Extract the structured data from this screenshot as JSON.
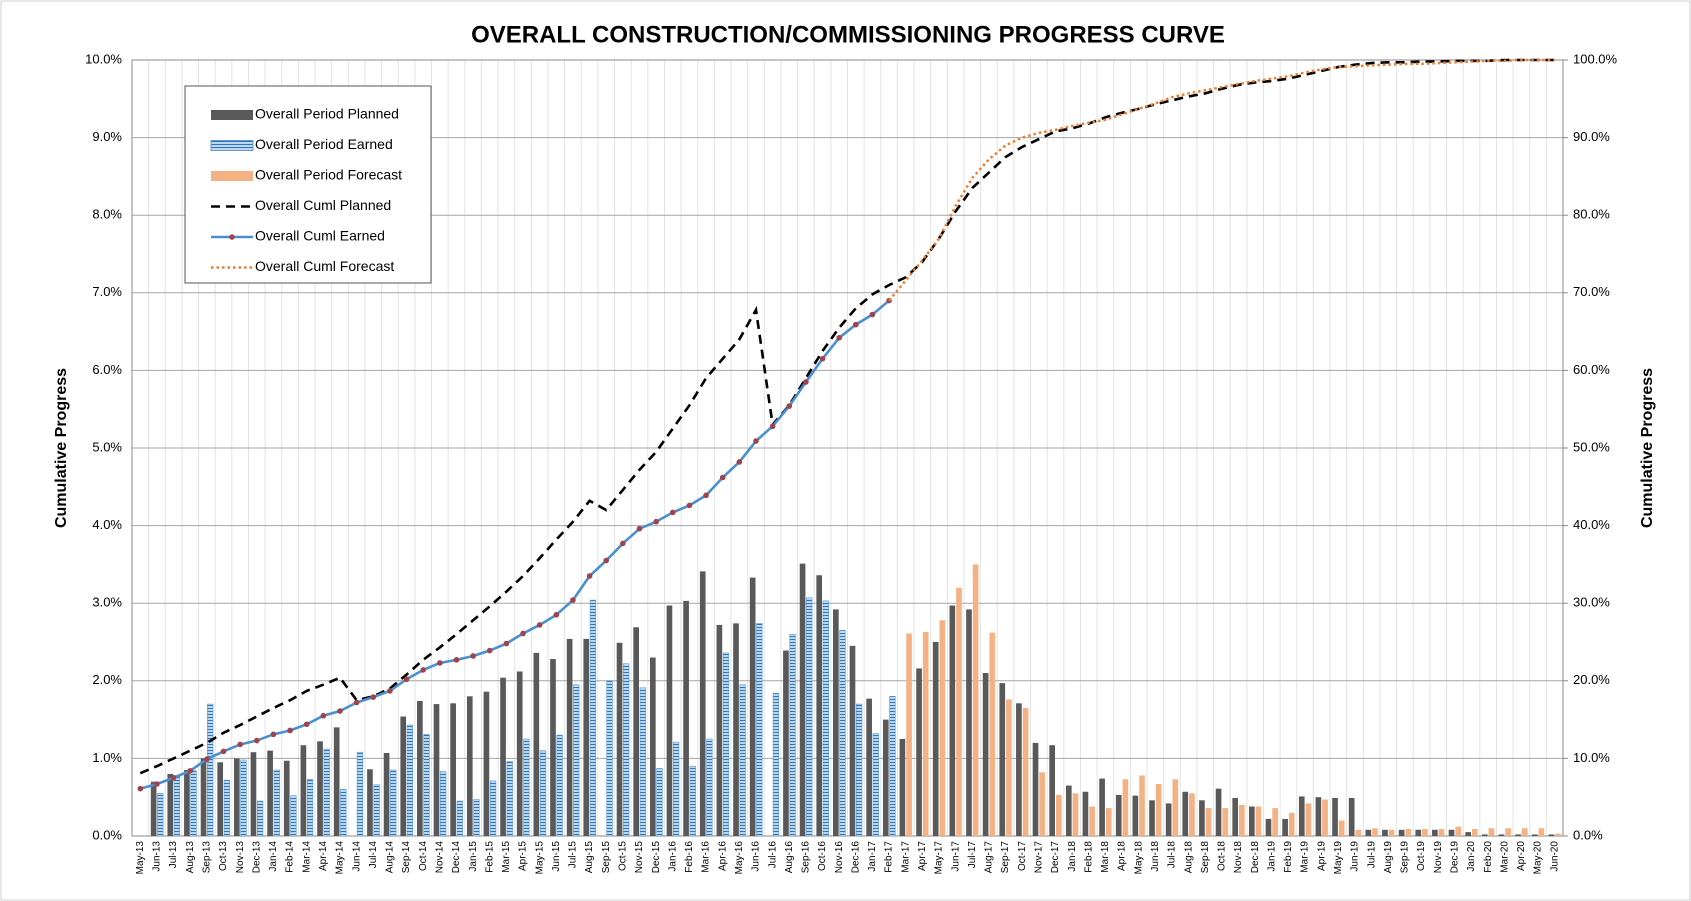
{
  "chart_data": {
    "type": "bar",
    "title": "OVERALL CONSTRUCTION/COMMISSIONING PROGRESS CURVE",
    "ylabel": "Cumulative Progress",
    "y2label": "Cumulative Progress",
    "categories": [
      "May-13",
      "Jun-13",
      "Jul-13",
      "Aug-13",
      "Sep-13",
      "Oct-13",
      "Nov-13",
      "Dec-13",
      "Jan-14",
      "Feb-14",
      "Mar-14",
      "Apr-14",
      "May-14",
      "Jun-14",
      "Jul-14",
      "Aug-14",
      "Sep-14",
      "Oct-14",
      "Nov-14",
      "Dec-14",
      "Jan-15",
      "Feb-15",
      "Mar-15",
      "Apr-15",
      "May-15",
      "Jun-15",
      "Jul-15",
      "Aug-15",
      "Sep-15",
      "Oct-15",
      "Nov-15",
      "Dec-15",
      "Jan-16",
      "Feb-16",
      "Mar-16",
      "Apr-16",
      "May-16",
      "Jun-16",
      "Jul-16",
      "Aug-16",
      "Sep-16",
      "Oct-16",
      "Nov-16",
      "Dec-16",
      "Jan-17",
      "Feb-17",
      "Mar-17",
      "Apr-17",
      "May-17",
      "Jun-17",
      "Jul-17",
      "Aug-17",
      "Sep-17",
      "Oct-17",
      "Nov-17",
      "Dec-17",
      "Jan-18",
      "Feb-18",
      "Mar-18",
      "Apr-18",
      "May-18",
      "Jun-18",
      "Jul-18",
      "Aug-18",
      "Sep-18",
      "Oct-18",
      "Nov-18",
      "Dec-18",
      "Jan-19",
      "Feb-19",
      "Mar-19",
      "Apr-19",
      "May-19",
      "Jun-19",
      "Jul-19",
      "Aug-19",
      "Sep-19",
      "Oct-19",
      "Nov-19",
      "Dec-19",
      "Jan-20",
      "Feb-20",
      "Mar-20",
      "Apr-20",
      "May-20",
      "Jun-20"
    ],
    "ylim": [
      0,
      10
    ],
    "yticks": [
      {
        "value": 0,
        "label": "0.0%"
      },
      {
        "value": 1,
        "label": "1.0%"
      },
      {
        "value": 2,
        "label": "2.0%"
      },
      {
        "value": 3,
        "label": "3.0%"
      },
      {
        "value": 4,
        "label": "4.0%"
      },
      {
        "value": 5,
        "label": "5.0%"
      },
      {
        "value": 6,
        "label": "6.0%"
      },
      {
        "value": 7,
        "label": "7.0%"
      },
      {
        "value": 8,
        "label": "8.0%"
      },
      {
        "value": 9,
        "label": "9.0%"
      },
      {
        "value": 10,
        "label": "10.0%"
      }
    ],
    "y2lim": [
      0,
      100
    ],
    "y2ticks": [
      {
        "value": 0,
        "label": "0.0%"
      },
      {
        "value": 10,
        "label": "10.0%"
      },
      {
        "value": 20,
        "label": "20.0%"
      },
      {
        "value": 30,
        "label": "30.0%"
      },
      {
        "value": 40,
        "label": "40.0%"
      },
      {
        "value": 50,
        "label": "50.0%"
      },
      {
        "value": 60,
        "label": "60.0%"
      },
      {
        "value": 70,
        "label": "70.0%"
      },
      {
        "value": 80,
        "label": "80.0%"
      },
      {
        "value": 90,
        "label": "90.0%"
      },
      {
        "value": 100,
        "label": "100.0%"
      }
    ],
    "grid": true,
    "legend": "upper left",
    "series": [
      {
        "name": "Overall Period Planned",
        "type": "bar",
        "color": "#595959",
        "values": [
          0,
          0.7,
          0.8,
          0.85,
          1.0,
          0.95,
          1.0,
          1.08,
          1.1,
          0.97,
          1.17,
          1.22,
          1.4,
          0,
          0.86,
          1.07,
          1.54,
          1.74,
          1.7,
          1.71,
          1.8,
          1.86,
          2.04,
          2.12,
          2.36,
          2.28,
          2.54,
          2.54,
          0,
          2.49,
          2.69,
          2.3,
          2.97,
          3.03,
          3.41,
          2.72,
          2.74,
          3.33,
          0,
          2.39,
          3.51,
          3.36,
          2.92,
          2.45,
          1.77,
          1.5,
          1.25,
          2.16,
          2.5,
          2.97,
          2.92,
          2.1,
          1.97,
          1.71,
          1.2,
          1.17,
          0.65,
          0.57,
          0.74,
          0.53,
          0.52,
          0.46,
          0.42,
          0.57,
          0.46,
          0.61,
          0.49,
          0.38,
          0.22,
          0.22,
          0.51,
          0.5,
          0.49,
          0.49,
          0.08,
          0.08,
          0.08,
          0.08,
          0.08,
          0.08,
          0.05,
          0.02,
          0.02,
          0.02,
          0.02,
          0.02
        ]
      },
      {
        "name": "Overall Period Earned",
        "type": "bar",
        "color": "#5b9bd5",
        "hatch": true,
        "values": [
          0,
          0.55,
          0.78,
          0.84,
          1.7,
          0.72,
          0.98,
          0.45,
          0.85,
          0.52,
          0.73,
          1.12,
          0.6,
          1.08,
          0.66,
          0.85,
          1.43,
          1.31,
          0.83,
          0.45,
          0.47,
          0.71,
          0.96,
          1.25,
          1.1,
          1.3,
          1.95,
          3.04,
          2.0,
          2.22,
          1.91,
          0.87,
          1.21,
          0.9,
          1.25,
          2.36,
          1.95,
          2.74,
          1.84,
          2.6,
          3.07,
          3.03,
          2.65,
          1.7,
          1.32,
          1.8,
          null,
          null,
          null,
          null,
          null,
          null,
          null,
          null,
          null,
          null,
          null,
          null,
          null,
          null,
          null,
          null,
          null,
          null,
          null,
          null,
          null,
          null,
          null,
          null,
          null,
          null,
          null,
          null,
          null,
          null,
          null,
          null,
          null,
          null,
          null,
          null,
          null,
          null,
          null,
          null
        ]
      },
      {
        "name": "Overall Period Forecast",
        "type": "bar",
        "color": "#f4b183",
        "values": [
          null,
          null,
          null,
          null,
          null,
          null,
          null,
          null,
          null,
          null,
          null,
          null,
          null,
          null,
          null,
          null,
          null,
          null,
          null,
          null,
          null,
          null,
          null,
          null,
          null,
          null,
          null,
          null,
          null,
          null,
          null,
          null,
          null,
          null,
          null,
          null,
          null,
          null,
          null,
          null,
          null,
          null,
          null,
          null,
          null,
          null,
          2.61,
          2.63,
          2.78,
          3.2,
          3.5,
          2.62,
          1.76,
          1.65,
          0.82,
          0.53,
          0.55,
          0.38,
          0.36,
          0.73,
          0.78,
          0.67,
          0.73,
          0.55,
          0.36,
          0.36,
          0.4,
          0.38,
          0.36,
          0.3,
          0.42,
          0.47,
          0.2,
          0.08,
          0.1,
          0.08,
          0.09,
          0.09,
          0.09,
          0.12,
          0.09,
          0.1,
          0.1,
          0.1,
          0.1,
          0.03
        ]
      },
      {
        "name": "Overall Cuml Planned",
        "type": "line",
        "axis": "y2",
        "color": "#000000",
        "dash": "dashed",
        "values": [
          8.1,
          9.0,
          10,
          11,
          12,
          13.3,
          14.3,
          15.4,
          16.5,
          17.5,
          18.7,
          19.5,
          20.4,
          17.5,
          18,
          19,
          20.8,
          22.7,
          24.3,
          26,
          27.8,
          29.6,
          31.5,
          33.5,
          35.8,
          38.2,
          40.5,
          43.2,
          42,
          44.6,
          47.2,
          49.5,
          52.5,
          55.5,
          59,
          61.5,
          64,
          67.8,
          53,
          55.5,
          59,
          62.5,
          65.5,
          68,
          69.8,
          71,
          72,
          74,
          77,
          80.5,
          83.5,
          85.5,
          87.5,
          88.8,
          89.8,
          90.8,
          91.2,
          91.8,
          92.6,
          93.2,
          93.7,
          94.3,
          94.8,
          95.3,
          95.7,
          96.3,
          96.8,
          97.1,
          97.3,
          97.6,
          98.1,
          98.6,
          99.1,
          99.4,
          99.6,
          99.7,
          99.7,
          99.8,
          99.8,
          99.9,
          99.9,
          99.9,
          100,
          100,
          100,
          100
        ]
      },
      {
        "name": "Overall Cuml Earned",
        "type": "line",
        "axis": "y2",
        "color": "#4a8fd0",
        "marker_color": "#a0434b",
        "values": [
          6.1,
          6.7,
          7.5,
          8.4,
          9.9,
          10.9,
          11.8,
          12.3,
          13.1,
          13.6,
          14.4,
          15.5,
          16.1,
          17.2,
          17.9,
          18.7,
          20.2,
          21.4,
          22.3,
          22.7,
          23.2,
          23.9,
          24.8,
          26.1,
          27.2,
          28.5,
          30.4,
          33.5,
          35.5,
          37.7,
          39.6,
          40.5,
          41.7,
          42.6,
          43.9,
          46.2,
          48.2,
          50.9,
          52.8,
          55.4,
          58.5,
          61.5,
          64.2,
          65.9,
          67.2,
          69,
          null,
          null,
          null,
          null,
          null,
          null,
          null,
          null,
          null,
          null,
          null,
          null,
          null,
          null,
          null,
          null,
          null,
          null,
          null,
          null,
          null,
          null,
          null,
          null,
          null,
          null,
          null,
          null,
          null,
          null,
          null,
          null,
          null,
          null,
          null,
          null,
          null,
          null,
          null,
          null
        ]
      },
      {
        "name": "Overall Cuml Forecast",
        "type": "line",
        "axis": "y2",
        "color": "#ed7d31",
        "dash": "dotted",
        "values": [
          null,
          null,
          null,
          null,
          null,
          null,
          null,
          null,
          null,
          null,
          null,
          null,
          null,
          null,
          null,
          null,
          null,
          null,
          null,
          null,
          null,
          null,
          null,
          null,
          null,
          null,
          null,
          null,
          null,
          null,
          null,
          null,
          null,
          null,
          null,
          null,
          null,
          null,
          null,
          null,
          null,
          null,
          null,
          null,
          null,
          69,
          71.6,
          74.2,
          77,
          81.2,
          84.8,
          87.2,
          89,
          90,
          90.6,
          91,
          91.5,
          91.9,
          92.3,
          93,
          93.7,
          94.4,
          95.2,
          95.7,
          96.1,
          96.5,
          96.9,
          97.3,
          97.6,
          97.9,
          98.4,
          98.8,
          99.1,
          99.2,
          99.3,
          99.4,
          99.5,
          99.5,
          99.6,
          99.7,
          99.8,
          99.9,
          99.9,
          100,
          100,
          100
        ]
      }
    ]
  }
}
